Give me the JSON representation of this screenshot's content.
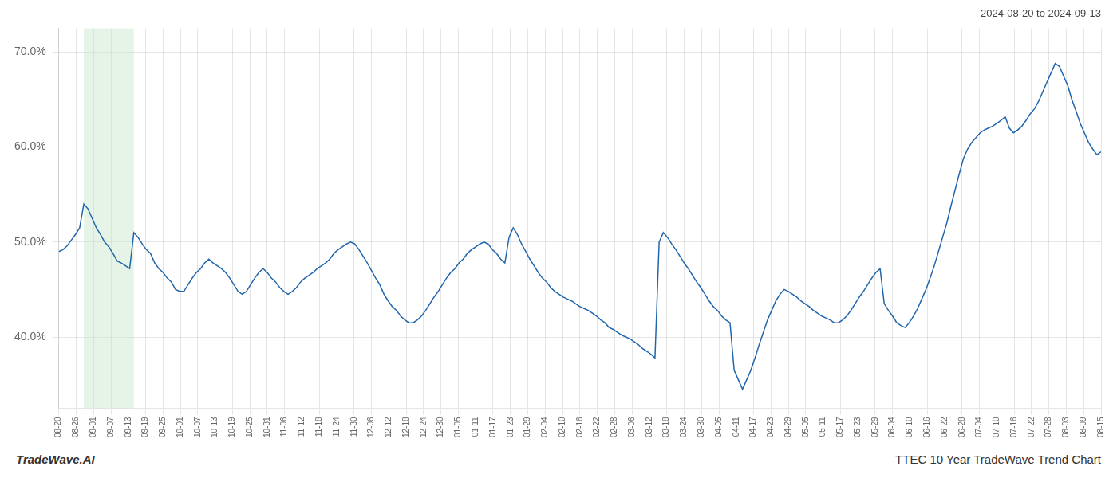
{
  "chart_data": {
    "type": "line",
    "title": "2024-08-20 to 2024-09-13",
    "annotations": [
      "TradeWave.AI",
      "TTEC 10 Year TradeWave Trend Chart"
    ],
    "color": "#2166ac",
    "grid": true,
    "shade": {
      "x": [
        6,
        18
      ],
      "color": "#c8e6c9"
    },
    "xlim": [
      0,
      250
    ],
    "ylim": [
      0.325,
      0.725
    ],
    "yticks": [
      {
        "value": 0.4,
        "label": "40.0%"
      },
      {
        "value": 0.5,
        "label": "50.0%"
      },
      {
        "value": 0.6,
        "label": "60.0%"
      },
      {
        "value": 0.7,
        "label": "70.0%"
      }
    ],
    "xticks": [
      {
        "value": 0,
        "label": "08-20"
      },
      {
        "value": 4.166667,
        "label": "08-26"
      },
      {
        "value": 8.333333,
        "label": "09-01"
      },
      {
        "value": 12.5,
        "label": "09-07"
      },
      {
        "value": 16.666667,
        "label": "09-13"
      },
      {
        "value": 20.833333,
        "label": "09-19"
      },
      {
        "value": 25,
        "label": "09-25"
      },
      {
        "value": 29.166667,
        "label": "10-01"
      },
      {
        "value": 33.333333,
        "label": "10-07"
      },
      {
        "value": 37.5,
        "label": "10-13"
      },
      {
        "value": 41.666667,
        "label": "10-19"
      },
      {
        "value": 45.833333,
        "label": "10-25"
      },
      {
        "value": 50,
        "label": "10-31"
      },
      {
        "value": 54.166667,
        "label": "11-06"
      },
      {
        "value": 58.333333,
        "label": "11-12"
      },
      {
        "value": 62.5,
        "label": "11-18"
      },
      {
        "value": 66.666667,
        "label": "11-24"
      },
      {
        "value": 70.833333,
        "label": "11-30"
      },
      {
        "value": 75,
        "label": "12-06"
      },
      {
        "value": 79.166667,
        "label": "12-12"
      },
      {
        "value": 83.333333,
        "label": "12-18"
      },
      {
        "value": 87.5,
        "label": "12-24"
      },
      {
        "value": 91.666667,
        "label": "12-30"
      },
      {
        "value": 95.833333,
        "label": "01-05"
      },
      {
        "value": 100,
        "label": "01-11"
      },
      {
        "value": 104.166667,
        "label": "01-17"
      },
      {
        "value": 108.333333,
        "label": "01-23"
      },
      {
        "value": 112.5,
        "label": "01-29"
      },
      {
        "value": 116.666667,
        "label": "02-04"
      },
      {
        "value": 120.833333,
        "label": "02-10"
      },
      {
        "value": 125,
        "label": "02-16"
      },
      {
        "value": 129.166667,
        "label": "02-22"
      },
      {
        "value": 133.333333,
        "label": "02-28"
      },
      {
        "value": 137.5,
        "label": "03-06"
      },
      {
        "value": 141.666667,
        "label": "03-12"
      },
      {
        "value": 145.833333,
        "label": "03-18"
      },
      {
        "value": 150,
        "label": "03-24"
      },
      {
        "value": 154.166667,
        "label": "03-30"
      },
      {
        "value": 158.333333,
        "label": "04-05"
      },
      {
        "value": 162.5,
        "label": "04-11"
      },
      {
        "value": 166.666667,
        "label": "04-17"
      },
      {
        "value": 170.833333,
        "label": "04-23"
      },
      {
        "value": 175,
        "label": "04-29"
      },
      {
        "value": 179.166667,
        "label": "05-05"
      },
      {
        "value": 183.333333,
        "label": "05-11"
      },
      {
        "value": 187.5,
        "label": "05-17"
      },
      {
        "value": 191.666667,
        "label": "05-23"
      },
      {
        "value": 195.833333,
        "label": "05-29"
      },
      {
        "value": 200,
        "label": "06-04"
      },
      {
        "value": 204.166667,
        "label": "06-10"
      },
      {
        "value": 208.333333,
        "label": "06-16"
      },
      {
        "value": 212.5,
        "label": "06-22"
      },
      {
        "value": 216.666667,
        "label": "06-28"
      },
      {
        "value": 220.833333,
        "label": "07-04"
      },
      {
        "value": 225,
        "label": "07-10"
      },
      {
        "value": 229.166667,
        "label": "07-16"
      },
      {
        "value": 233.333333,
        "label": "07-22"
      },
      {
        "value": 237.5,
        "label": "07-28"
      },
      {
        "value": 241.666667,
        "label": "08-03"
      },
      {
        "value": 245.833333,
        "label": "08-09"
      },
      {
        "value": 250,
        "label": "08-15"
      }
    ],
    "x": [
      0,
      1,
      2,
      3,
      4,
      5,
      6,
      7,
      8,
      9,
      10,
      11,
      12,
      13,
      14,
      15,
      16,
      17,
      18,
      19,
      20,
      21,
      22,
      23,
      24,
      25,
      26,
      27,
      28,
      29,
      30,
      31,
      32,
      33,
      34,
      35,
      36,
      37,
      38,
      39,
      40,
      41,
      42,
      43,
      44,
      45,
      46,
      47,
      48,
      49,
      50,
      51,
      52,
      53,
      54,
      55,
      56,
      57,
      58,
      59,
      60,
      61,
      62,
      63,
      64,
      65,
      66,
      67,
      68,
      69,
      70,
      71,
      72,
      73,
      74,
      75,
      76,
      77,
      78,
      79,
      80,
      81,
      82,
      83,
      84,
      85,
      86,
      87,
      88,
      89,
      90,
      91,
      92,
      93,
      94,
      95,
      96,
      97,
      98,
      99,
      100,
      101,
      102,
      103,
      104,
      105,
      106,
      107,
      108,
      109,
      110,
      111,
      112,
      113,
      114,
      115,
      116,
      117,
      118,
      119,
      120,
      121,
      122,
      123,
      124,
      125,
      126,
      127,
      128,
      129,
      130,
      131,
      132,
      133,
      134,
      135,
      136,
      137,
      138,
      139,
      140,
      141,
      142,
      143,
      144,
      145,
      146,
      147,
      148,
      149,
      150,
      151,
      152,
      153,
      154,
      155,
      156,
      157,
      158,
      159,
      160,
      161,
      162,
      163,
      164,
      165,
      166,
      167,
      168,
      169,
      170,
      171,
      172,
      173,
      174,
      175,
      176,
      177,
      178,
      179,
      180,
      181,
      182,
      183,
      184,
      185,
      186,
      187,
      188,
      189,
      190,
      191,
      192,
      193,
      194,
      195,
      196,
      197,
      198,
      199,
      200,
      201,
      202,
      203,
      204,
      205,
      206,
      207,
      208,
      209,
      210,
      211,
      212,
      213,
      214,
      215,
      216,
      217,
      218,
      219,
      220,
      221,
      222,
      223,
      224,
      225,
      226,
      227,
      228,
      229,
      230,
      231,
      232,
      233,
      234,
      235,
      236,
      237,
      238,
      239,
      240,
      241,
      242,
      243,
      244,
      245,
      246,
      247,
      248,
      249,
      250
    ],
    "values": [
      0.49,
      0.492,
      0.496,
      0.502,
      0.508,
      0.515,
      0.54,
      0.535,
      0.525,
      0.515,
      0.508,
      0.5,
      0.495,
      0.488,
      0.48,
      0.478,
      0.475,
      0.472,
      0.51,
      0.505,
      0.498,
      0.492,
      0.488,
      0.478,
      0.472,
      0.468,
      0.462,
      0.458,
      0.45,
      0.448,
      0.448,
      0.455,
      0.462,
      0.468,
      0.472,
      0.478,
      0.482,
      0.478,
      0.475,
      0.472,
      0.468,
      0.462,
      0.455,
      0.448,
      0.445,
      0.448,
      0.455,
      0.462,
      0.468,
      0.472,
      0.468,
      0.462,
      0.458,
      0.452,
      0.448,
      0.445,
      0.448,
      0.452,
      0.458,
      0.462,
      0.465,
      0.468,
      0.472,
      0.475,
      0.478,
      0.482,
      0.488,
      0.492,
      0.495,
      0.498,
      0.5,
      0.498,
      0.492,
      0.485,
      0.478,
      0.47,
      0.462,
      0.455,
      0.445,
      0.438,
      0.432,
      0.428,
      0.422,
      0.418,
      0.415,
      0.415,
      0.418,
      0.422,
      0.428,
      0.435,
      0.442,
      0.448,
      0.455,
      0.462,
      0.468,
      0.472,
      0.478,
      0.482,
      0.488,
      0.492,
      0.495,
      0.498,
      0.5,
      0.498,
      0.492,
      0.488,
      0.482,
      0.478,
      0.505,
      0.515,
      0.508,
      0.498,
      0.49,
      0.482,
      0.475,
      0.468,
      0.462,
      0.458,
      0.452,
      0.448,
      0.445,
      0.442,
      0.44,
      0.438,
      0.435,
      0.432,
      0.43,
      0.428,
      0.425,
      0.422,
      0.418,
      0.415,
      0.41,
      0.408,
      0.405,
      0.402,
      0.4,
      0.398,
      0.395,
      0.392,
      0.388,
      0.385,
      0.382,
      0.378,
      0.5,
      0.51,
      0.505,
      0.498,
      0.492,
      0.485,
      0.478,
      0.472,
      0.465,
      0.458,
      0.452,
      0.445,
      0.438,
      0.432,
      0.428,
      0.422,
      0.418,
      0.415,
      0.365,
      0.355,
      0.345,
      0.355,
      0.365,
      0.378,
      0.392,
      0.405,
      0.418,
      0.428,
      0.438,
      0.445,
      0.45,
      0.448,
      0.445,
      0.442,
      0.438,
      0.435,
      0.432,
      0.428,
      0.425,
      0.422,
      0.42,
      0.418,
      0.415,
      0.415,
      0.418,
      0.422,
      0.428,
      0.435,
      0.442,
      0.448,
      0.455,
      0.462,
      0.468,
      0.472,
      0.435,
      0.428,
      0.422,
      0.415,
      0.412,
      0.41,
      0.415,
      0.422,
      0.43,
      0.44,
      0.45,
      0.462,
      0.475,
      0.49,
      0.505,
      0.52,
      0.538,
      0.555,
      0.572,
      0.588,
      0.598,
      0.605,
      0.61,
      0.615,
      0.618,
      0.62,
      0.622,
      0.625,
      0.628,
      0.632,
      0.62,
      0.615,
      0.618,
      0.622,
      0.628,
      0.635,
      0.64,
      0.648,
      0.658,
      0.668,
      0.678,
      0.688,
      0.685,
      0.675,
      0.665,
      0.65,
      0.638,
      0.625,
      0.615,
      0.605,
      0.598,
      0.592,
      0.595
    ]
  }
}
